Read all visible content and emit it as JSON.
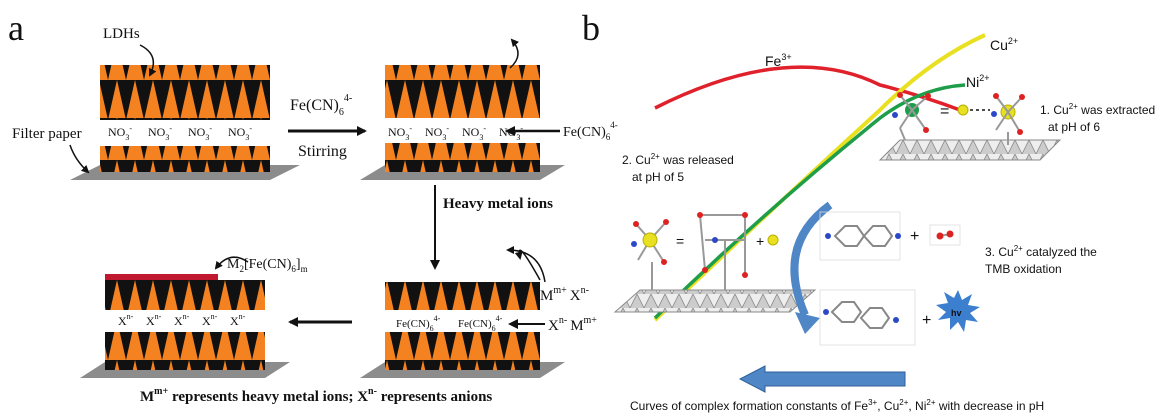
{
  "panel_a": {
    "label": "a",
    "ldh_label": "LDHs",
    "filter_label": "Filter paper",
    "nitrate": "NO",
    "nitrate_sub": "3",
    "nitrate_sup": "-",
    "reagent_main": "Fe(CN)",
    "reagent_sub": "6",
    "reagent_sup": "4-",
    "stirring": "Stirring",
    "heavy_metal": "Heavy metal ions",
    "ion_m": "M",
    "ion_m_sup": "m+",
    "ion_x": "X",
    "ion_x_sup": "n-",
    "fecn_main": "Fe(CN)",
    "fecn_sub": "6",
    "fecn_sup": "4-",
    "xn": "X",
    "xn_sup": "n-",
    "product_m2": "M",
    "product_sub2": "2",
    "product_mid": "[Fe(CN)",
    "product_sub6": "6",
    "product_end": "]",
    "product_subm": "m",
    "caption_pre": "M",
    "caption_sup1": "m+",
    "caption_mid": " represents heavy metal ions; X",
    "caption_sup2": "n-",
    "caption_end": " represents anions"
  },
  "panel_b": {
    "label": "b",
    "fe": "Fe",
    "fe_sup": "3+",
    "cu": "Cu",
    "cu_sup": "2+",
    "ni": "Ni",
    "ni_sup": "2+",
    "step1_a": "1. Cu",
    "step1_sup": "2+",
    "step1_b": " was extracted",
    "step1_c": "at pH of 6",
    "step2_a": "2. Cu",
    "step2_sup": "2+",
    "step2_b": " was released",
    "step2_c": "at pH of 5",
    "step3_a": "3. Cu",
    "step3_sup": "2+",
    "step3_b": " catalyzed the",
    "step3_c": "TMB oxidation",
    "hv": "hv",
    "caption_a": "Curves of complex formation constants of Fe",
    "caption_sup1": "3+",
    "caption_b": ", Cu",
    "caption_sup2": "2+",
    "caption_c": ", Ni",
    "caption_sup3": "2+",
    "caption_d": " with decrease in pH"
  },
  "colors": {
    "orange": "#F58220",
    "black": "#111111",
    "gray_base": "#8c8c8c",
    "red_layer": "#C0182E",
    "fe_curve": "#E0202A",
    "cu_curve": "#E8E020",
    "ni_curve": "#1E9E4A",
    "arrow_blue": "#4F86C6",
    "burst_blue": "#3C7FCF"
  }
}
